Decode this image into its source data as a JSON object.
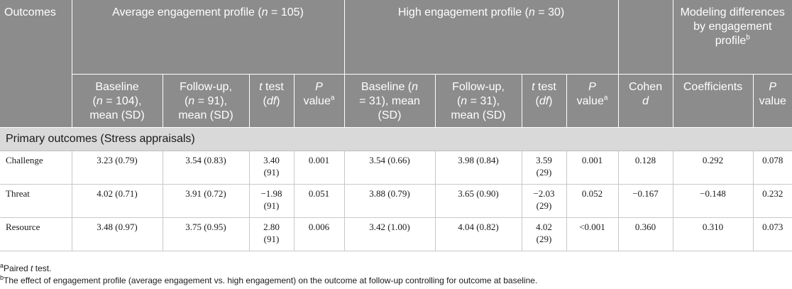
{
  "header": {
    "outcomes": "Outcomes",
    "avg_profile": "Average engagement profile",
    "avg_n": "105",
    "high_profile": "High engagement profile",
    "high_n": "30",
    "modeling": "Modeling differences by engagement profile",
    "modeling_sup": "b",
    "avg_baseline_1": "Baseline",
    "avg_baseline_n": "104",
    "mean_sd": "mean (SD)",
    "avg_followup_1": "Follow-up,",
    "avg_followup_n": "91",
    "t_test": "test",
    "df": "df",
    "p_value_1": "P",
    "p_value_2": "value",
    "p_sup": "a",
    "high_baseline_1": "Baseline",
    "high_baseline_n": "31",
    "high_followup_n": "31",
    "cohen": "Cohen",
    "cohen_d": "d",
    "coefficients": "Coefficients"
  },
  "section": {
    "title": "Primary outcomes (Stress appraisals)"
  },
  "rows": [
    {
      "label": "Challenge",
      "avg_baseline": "3.23 (0.79)",
      "avg_followup": "3.54 (0.83)",
      "avg_t": "3.40",
      "avg_df": "(91)",
      "avg_p": "0.001",
      "high_baseline": "3.54 (0.66)",
      "high_followup": "3.98 (0.84)",
      "high_t": "3.59",
      "high_df": "(29)",
      "high_p": "0.001",
      "cohen": "0.128",
      "coef": "0.292",
      "model_p": "0.078"
    },
    {
      "label": "Threat",
      "avg_baseline": "4.02 (0.71)",
      "avg_followup": "3.91 (0.72)",
      "avg_t": "−1.98",
      "avg_df": "(91)",
      "avg_p": "0.051",
      "high_baseline": "3.88 (0.79)",
      "high_followup": "3.65 (0.90)",
      "high_t": "−2.03",
      "high_df": "(29)",
      "high_p": "0.052",
      "cohen": "−0.167",
      "coef": "−0.148",
      "model_p": "0.232"
    },
    {
      "label": "Resource",
      "avg_baseline": "3.48 (0.97)",
      "avg_followup": "3.75 (0.95)",
      "avg_t": "2.80",
      "avg_df": "(91)",
      "avg_p": "0.006",
      "high_baseline": "3.42 (1.00)",
      "high_followup": "4.04 (0.82)",
      "high_t": "4.02",
      "high_df": "(29)",
      "high_p": "<0.001",
      "cohen": "0.360",
      "coef": "0.310",
      "model_p": "0.073"
    }
  ],
  "footnotes": {
    "a_mark": "a",
    "a_text_1": "Paired",
    "a_text_2": "test.",
    "b_mark": "b",
    "b_text": "The effect of engagement profile (average engagement vs. high engagement) on the outcome at follow-up controlling for outcome at baseline."
  }
}
